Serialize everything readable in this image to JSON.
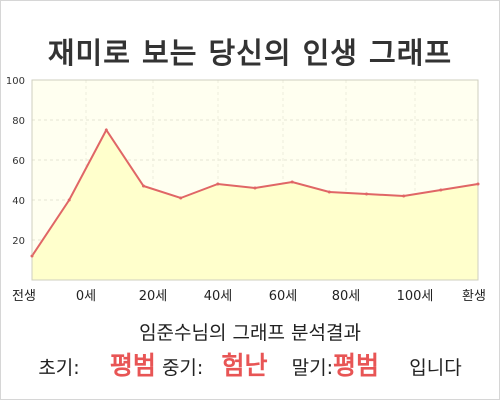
{
  "title": "재미로 보는 당신의 인생 그래프",
  "chart_data": {
    "type": "area",
    "x_ticks": [
      "전생",
      "0세",
      "20세",
      "40세",
      "60세",
      "80세",
      "100세",
      "환생"
    ],
    "y_ticks": [
      "20",
      "40",
      "60",
      "80",
      "100"
    ],
    "ylim": [
      0,
      100
    ],
    "grid": true,
    "values": [
      12,
      40,
      75,
      47,
      41,
      48,
      46,
      49,
      44,
      43,
      42,
      45,
      48
    ]
  },
  "summary": "임준수님의 그래프 분석결과",
  "verdict": {
    "early_label": "초기:",
    "early_value": "평범",
    "middle_label": "중기:",
    "middle_value": "험난",
    "late_label": "말기:",
    "late_value": "평범",
    "suffix": "입니다"
  },
  "colors": {
    "line": "#e06666",
    "fill": "#ffffcc",
    "plot_bg": "#fffff0",
    "accent": "#e85555"
  }
}
